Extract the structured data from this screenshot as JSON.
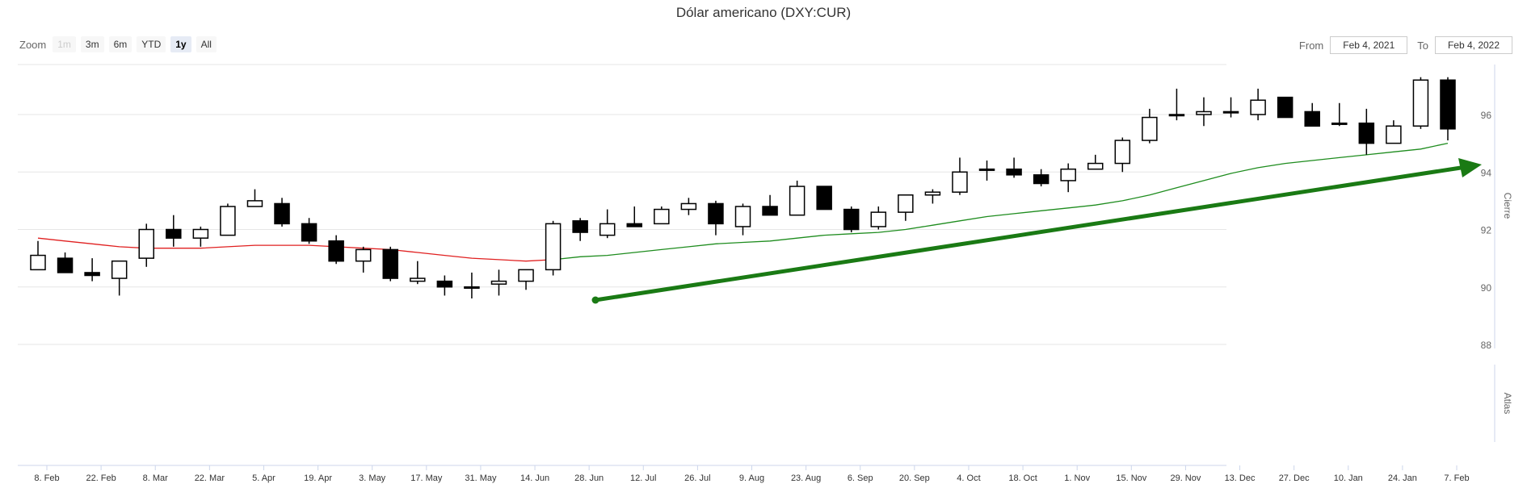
{
  "title": "Dólar americano (DXY:CUR)",
  "zoom": {
    "label": "Zoom",
    "buttons": [
      {
        "label": "1m",
        "state": "disabled"
      },
      {
        "label": "3m",
        "state": "normal"
      },
      {
        "label": "6m",
        "state": "normal"
      },
      {
        "label": "YTD",
        "state": "normal"
      },
      {
        "label": "1y",
        "state": "active"
      },
      {
        "label": "All",
        "state": "normal"
      }
    ]
  },
  "range": {
    "from_label": "From",
    "from_value": "Feb 4, 2021",
    "to_label": "To",
    "to_value": "Feb 4, 2022"
  },
  "colors": {
    "up_candle_fill": "#ffffff",
    "down_candle_fill": "#000000",
    "candle_stroke": "#000000",
    "ma_before": "#e02020",
    "ma_after": "#1e8c1e",
    "arrow": "#1a7a14",
    "grid": "#e6e6e6"
  },
  "chart_data": {
    "type": "candlestick",
    "title": "Dólar americano (DXY:CUR)",
    "y_axis_title": "Cierre",
    "lower_axis_title": "Atlas",
    "y_ticks": [
      88,
      90,
      92,
      94,
      96
    ],
    "ylim": [
      87.5,
      97.8
    ],
    "grid": true,
    "x_ticks": [
      "8. Feb",
      "22. Feb",
      "8. Mar",
      "22. Mar",
      "5. Apr",
      "19. Apr",
      "3. May",
      "17. May",
      "31. May",
      "14. Jun",
      "28. Jun",
      "12. Jul",
      "26. Jul",
      "9. Aug",
      "23. Aug",
      "6. Sep",
      "20. Sep",
      "4. Oct",
      "18. Oct",
      "1. Nov",
      "15. Nov",
      "29. Nov",
      "13. Dec",
      "27. Dec",
      "10. Jan",
      "24. Jan",
      "7. Feb"
    ],
    "candles": [
      {
        "o": 90.6,
        "h": 91.6,
        "l": 90.6,
        "c": 91.1
      },
      {
        "o": 91.0,
        "h": 91.2,
        "l": 90.5,
        "c": 90.5
      },
      {
        "o": 90.5,
        "h": 91.0,
        "l": 90.2,
        "c": 90.4
      },
      {
        "o": 90.3,
        "h": 90.9,
        "l": 89.7,
        "c": 90.9
      },
      {
        "o": 91.0,
        "h": 92.2,
        "l": 90.7,
        "c": 92.0
      },
      {
        "o": 92.0,
        "h": 92.5,
        "l": 91.4,
        "c": 91.7
      },
      {
        "o": 91.7,
        "h": 92.1,
        "l": 91.4,
        "c": 92.0
      },
      {
        "o": 91.8,
        "h": 92.9,
        "l": 91.8,
        "c": 92.8
      },
      {
        "o": 92.8,
        "h": 93.4,
        "l": 92.8,
        "c": 93.0
      },
      {
        "o": 92.9,
        "h": 93.1,
        "l": 92.1,
        "c": 92.2
      },
      {
        "o": 92.2,
        "h": 92.4,
        "l": 91.5,
        "c": 91.6
      },
      {
        "o": 91.6,
        "h": 91.8,
        "l": 90.8,
        "c": 90.9
      },
      {
        "o": 90.9,
        "h": 91.4,
        "l": 90.5,
        "c": 91.3
      },
      {
        "o": 91.3,
        "h": 91.4,
        "l": 90.2,
        "c": 90.3
      },
      {
        "o": 90.2,
        "h": 90.9,
        "l": 90.1,
        "c": 90.3
      },
      {
        "o": 90.2,
        "h": 90.4,
        "l": 89.7,
        "c": 90.0
      },
      {
        "o": 90.0,
        "h": 90.5,
        "l": 89.6,
        "c": 90.0
      },
      {
        "o": 90.1,
        "h": 90.6,
        "l": 89.7,
        "c": 90.2
      },
      {
        "o": 90.2,
        "h": 90.6,
        "l": 89.9,
        "c": 90.6
      },
      {
        "o": 90.6,
        "h": 92.3,
        "l": 90.4,
        "c": 92.2
      },
      {
        "o": 92.3,
        "h": 92.4,
        "l": 91.6,
        "c": 91.9
      },
      {
        "o": 91.8,
        "h": 92.7,
        "l": 91.7,
        "c": 92.2
      },
      {
        "o": 92.2,
        "h": 92.8,
        "l": 92.1,
        "c": 92.1
      },
      {
        "o": 92.2,
        "h": 92.8,
        "l": 92.2,
        "c": 92.7
      },
      {
        "o": 92.7,
        "h": 93.1,
        "l": 92.5,
        "c": 92.9
      },
      {
        "o": 92.9,
        "h": 93.0,
        "l": 91.8,
        "c": 92.2
      },
      {
        "o": 92.1,
        "h": 92.9,
        "l": 91.8,
        "c": 92.8
      },
      {
        "o": 92.8,
        "h": 93.2,
        "l": 92.5,
        "c": 92.5
      },
      {
        "o": 92.5,
        "h": 93.7,
        "l": 92.5,
        "c": 93.5
      },
      {
        "o": 93.5,
        "h": 93.5,
        "l": 92.7,
        "c": 92.7
      },
      {
        "o": 92.7,
        "h": 92.8,
        "l": 91.9,
        "c": 92.0
      },
      {
        "o": 92.1,
        "h": 92.8,
        "l": 92.0,
        "c": 92.6
      },
      {
        "o": 92.6,
        "h": 93.2,
        "l": 92.3,
        "c": 93.2
      },
      {
        "o": 93.2,
        "h": 93.4,
        "l": 92.9,
        "c": 93.3
      },
      {
        "o": 93.3,
        "h": 94.5,
        "l": 93.2,
        "c": 94.0
      },
      {
        "o": 94.1,
        "h": 94.4,
        "l": 93.7,
        "c": 94.1
      },
      {
        "o": 94.1,
        "h": 94.5,
        "l": 93.8,
        "c": 93.9
      },
      {
        "o": 93.9,
        "h": 94.1,
        "l": 93.5,
        "c": 93.6
      },
      {
        "o": 93.7,
        "h": 94.3,
        "l": 93.3,
        "c": 94.1
      },
      {
        "o": 94.1,
        "h": 94.6,
        "l": 94.1,
        "c": 94.3
      },
      {
        "o": 94.3,
        "h": 95.2,
        "l": 94.0,
        "c": 95.1
      },
      {
        "o": 95.1,
        "h": 96.2,
        "l": 95.0,
        "c": 95.9
      },
      {
        "o": 96.0,
        "h": 96.9,
        "l": 95.8,
        "c": 96.0
      },
      {
        "o": 96.0,
        "h": 96.6,
        "l": 95.6,
        "c": 96.1
      },
      {
        "o": 96.1,
        "h": 96.6,
        "l": 95.9,
        "c": 96.1
      },
      {
        "o": 96.0,
        "h": 96.9,
        "l": 95.8,
        "c": 96.5
      },
      {
        "o": 96.6,
        "h": 96.6,
        "l": 95.9,
        "c": 95.9
      },
      {
        "o": 96.1,
        "h": 96.4,
        "l": 95.6,
        "c": 95.6
      },
      {
        "o": 95.7,
        "h": 96.4,
        "l": 95.6,
        "c": 95.7
      },
      {
        "o": 95.7,
        "h": 96.2,
        "l": 94.6,
        "c": 95.0
      },
      {
        "o": 95.0,
        "h": 95.8,
        "l": 95.0,
        "c": 95.6
      },
      {
        "o": 95.6,
        "h": 97.3,
        "l": 95.5,
        "c": 97.2
      },
      {
        "o": 97.2,
        "h": 97.3,
        "l": 95.1,
        "c": 95.5
      }
    ],
    "moving_average": [
      91.7,
      91.6,
      91.5,
      91.4,
      91.35,
      91.35,
      91.35,
      91.4,
      91.45,
      91.45,
      91.45,
      91.4,
      91.35,
      91.3,
      91.2,
      91.1,
      91.0,
      90.95,
      90.9,
      90.95,
      91.05,
      91.1,
      91.2,
      91.3,
      91.4,
      91.5,
      91.55,
      91.6,
      91.7,
      91.8,
      91.85,
      91.9,
      92.0,
      92.15,
      92.3,
      92.45,
      92.55,
      92.65,
      92.75,
      92.85,
      93.0,
      93.2,
      93.45,
      93.7,
      93.95,
      94.15,
      94.3,
      94.4,
      94.5,
      94.6,
      94.7,
      94.8,
      95.0
    ]
  }
}
